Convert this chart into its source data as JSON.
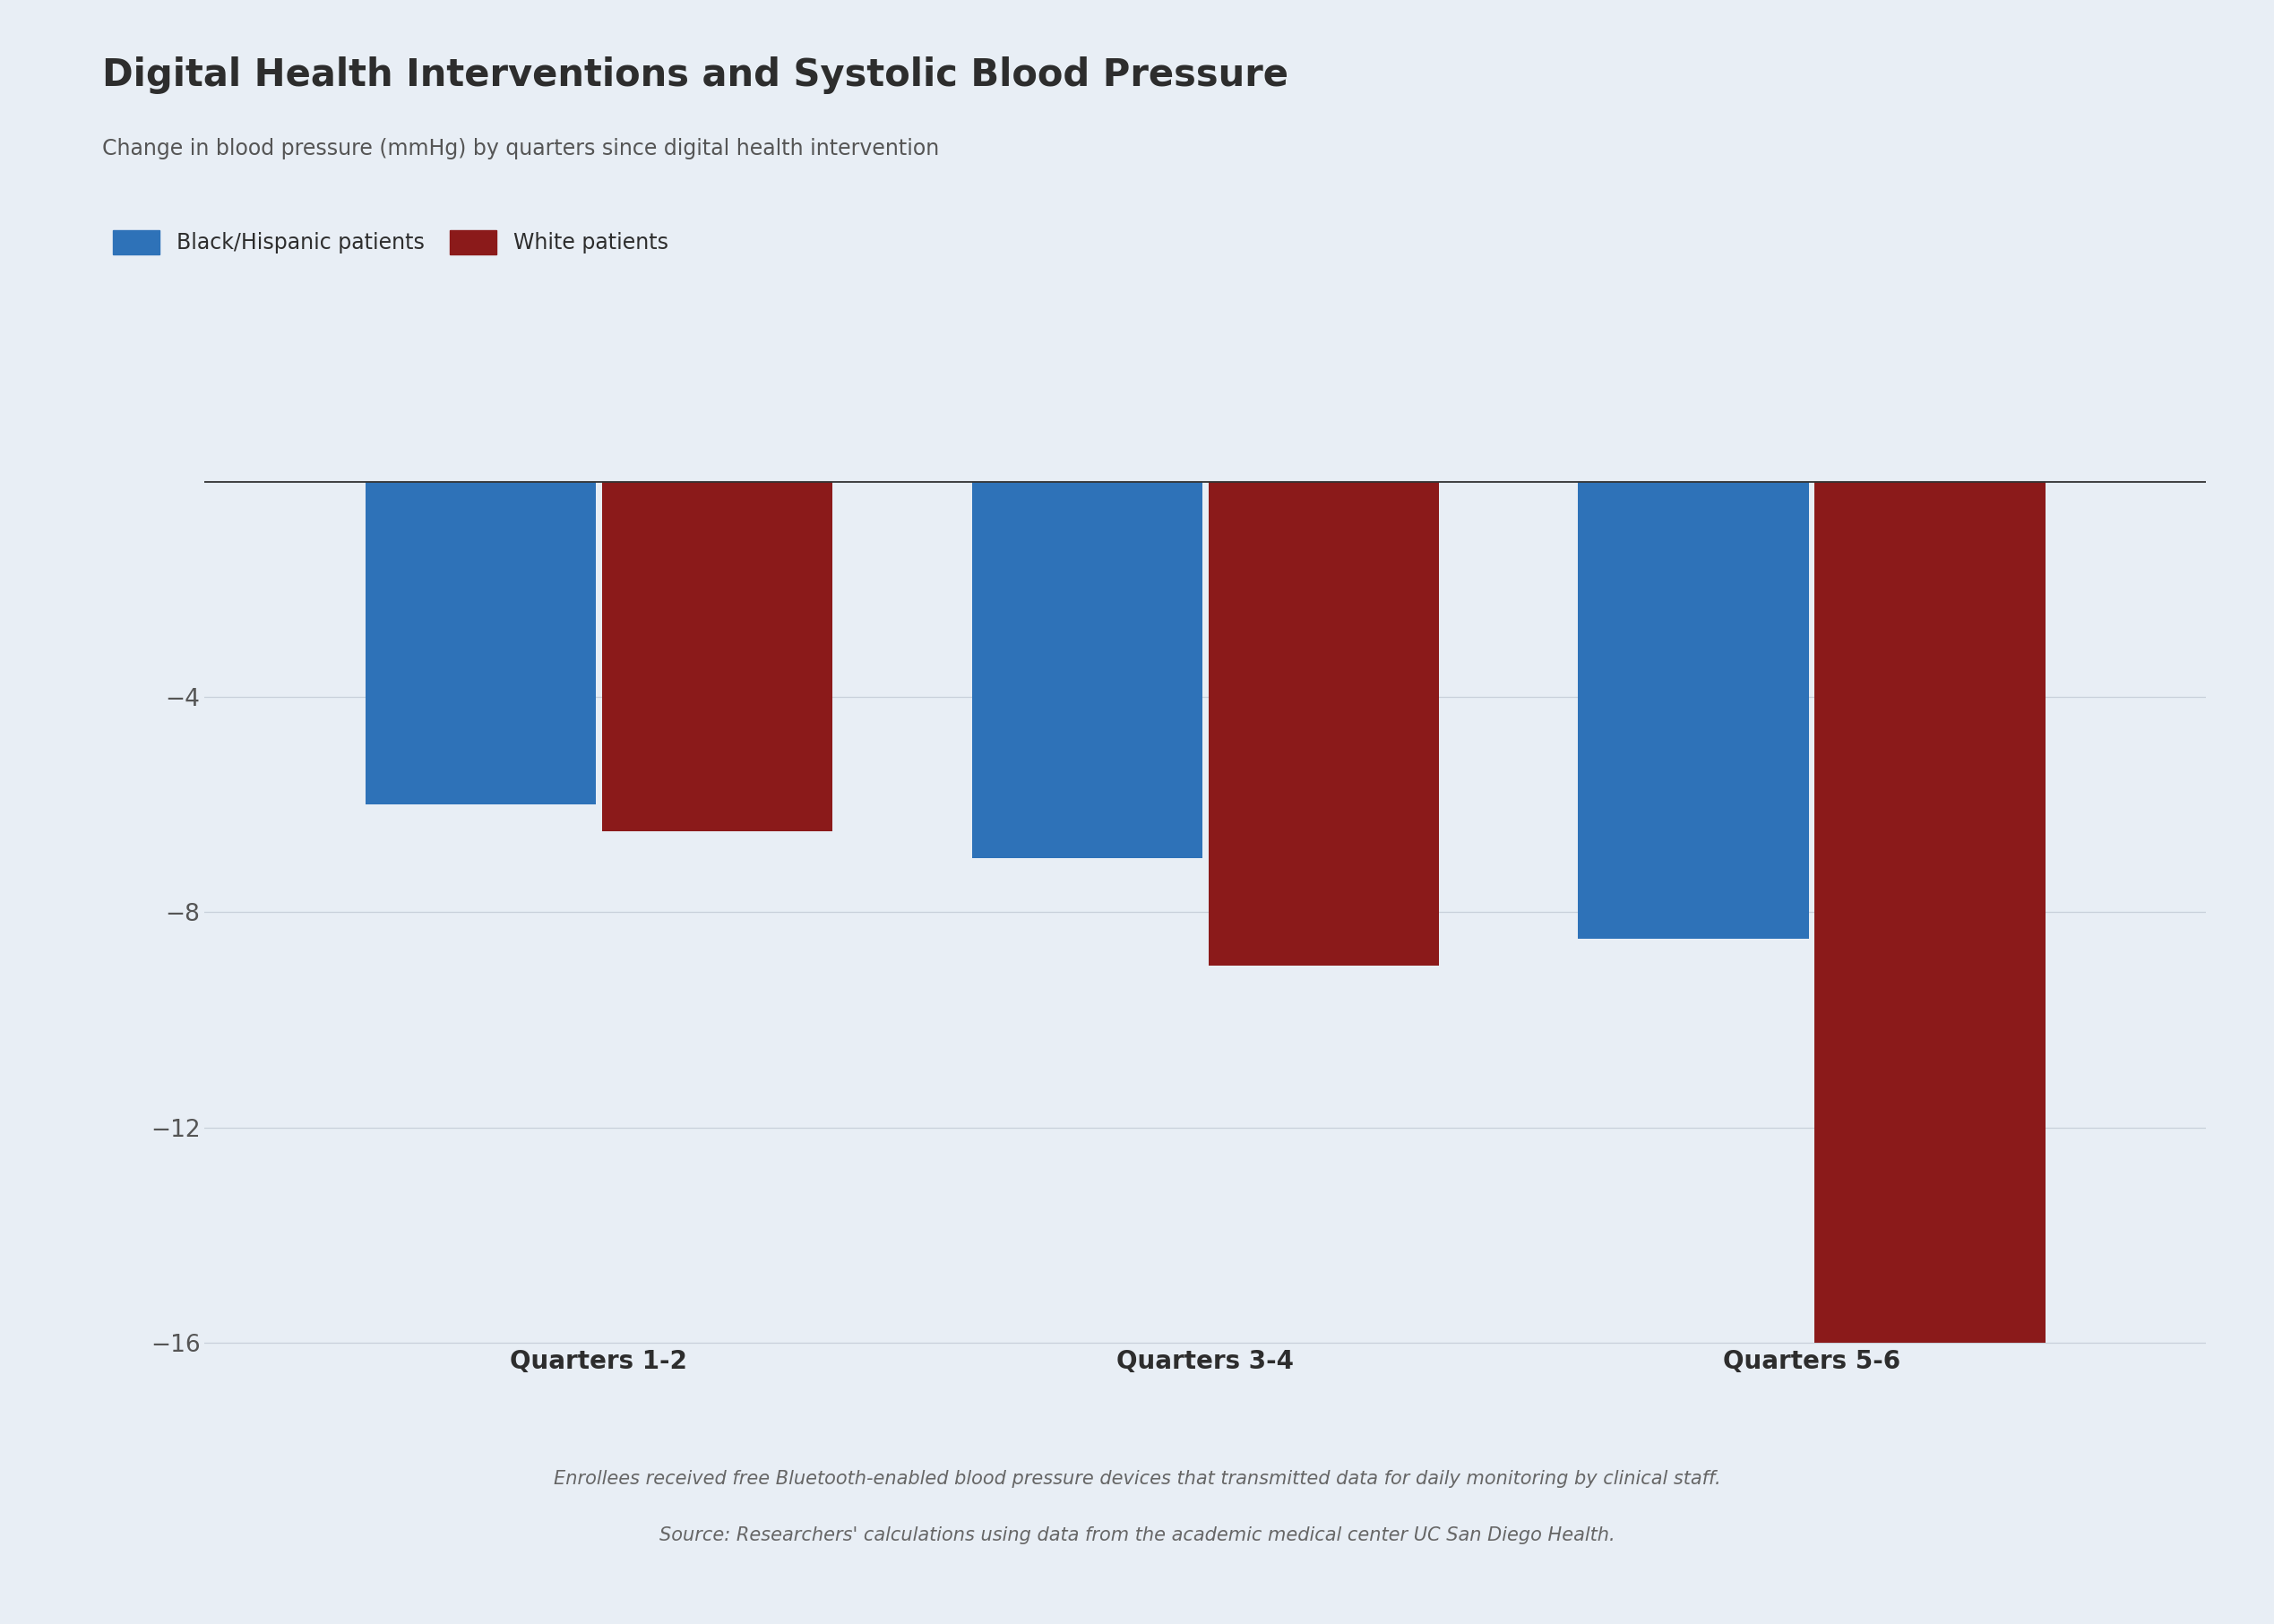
{
  "title": "Digital Health Interventions and Systolic Blood Pressure",
  "subtitle": "Change in blood pressure (mmHg) by quarters since digital health intervention",
  "categories": [
    "Quarters 1-2",
    "Quarters 3-4",
    "Quarters 5-6"
  ],
  "black_hispanic": [
    -6,
    -7,
    -8.5
  ],
  "white": [
    -6.5,
    -9,
    -16
  ],
  "bar_color_bh": "#2e72b8",
  "bar_color_white": "#8b1a1a",
  "background_color": "#e8eef5",
  "ylim": [
    -17,
    0.5
  ],
  "yticks": [
    -16,
    -12,
    -8,
    -4,
    0
  ],
  "legend_labels": [
    "Black/Hispanic patients",
    "White patients"
  ],
  "note_line1": "Enrollees received free Bluetooth-enabled blood pressure devices that transmitted data for daily monitoring by clinical staff.",
  "note_line2": "Source: Researchers' calculations using data from the academic medical center UC San Diego Health.",
  "title_fontsize": 30,
  "subtitle_fontsize": 17,
  "tick_fontsize": 19,
  "legend_fontsize": 17,
  "category_fontsize": 20,
  "note_fontsize": 15,
  "bar_width": 0.38,
  "title_color": "#2d2d2d",
  "subtitle_color": "#555555",
  "tick_color": "#555555",
  "note_color": "#666666",
  "grid_color": "#c8d0da",
  "zeroline_color": "#333333"
}
